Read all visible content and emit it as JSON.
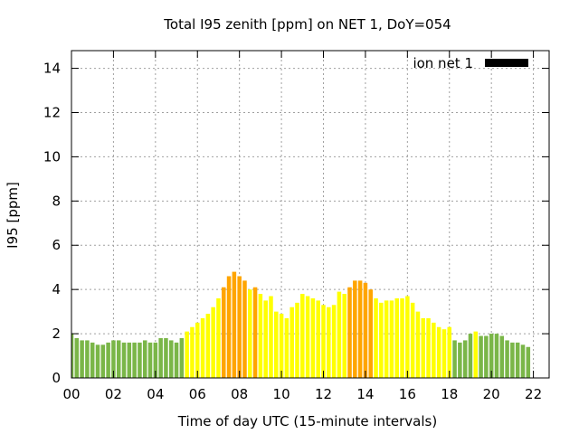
{
  "chart_data": {
    "type": "bar",
    "title": "Total I95 zenith [ppm] on NET 1, DoY=054",
    "xlabel": "Time of day UTC (15-minute intervals)",
    "ylabel": "I95 [ppm]",
    "xlim": [
      0,
      22.75
    ],
    "ylim": [
      0,
      14.8
    ],
    "x_ticks": [
      "00",
      "02",
      "04",
      "06",
      "08",
      "10",
      "12",
      "14",
      "16",
      "18",
      "20",
      "22"
    ],
    "y_ticks": [
      "0",
      "2",
      "4",
      "6",
      "8",
      "10",
      "12",
      "14"
    ],
    "grid": true,
    "legend": {
      "position": "top-right",
      "label": "ion net 1",
      "color": "#000000"
    },
    "bar_interval_hours": 0.25,
    "colors": {
      "low": "#7ab648",
      "medium": "#ffff00",
      "high": "#ffa500"
    },
    "values": [
      2.0,
      1.8,
      1.7,
      1.7,
      1.6,
      1.5,
      1.5,
      1.6,
      1.7,
      1.7,
      1.6,
      1.6,
      1.6,
      1.6,
      1.7,
      1.6,
      1.6,
      1.8,
      1.8,
      1.7,
      1.6,
      1.8,
      2.1,
      2.3,
      2.5,
      2.7,
      2.9,
      3.2,
      3.6,
      4.1,
      4.6,
      4.8,
      4.6,
      4.4,
      4.0,
      4.1,
      3.8,
      3.5,
      3.7,
      3.0,
      2.9,
      2.7,
      3.2,
      3.4,
      3.8,
      3.7,
      3.6,
      3.5,
      3.3,
      3.2,
      3.3,
      3.9,
      3.8,
      4.1,
      4.4,
      4.4,
      4.3,
      4.0,
      3.6,
      3.4,
      3.5,
      3.5,
      3.6,
      3.6,
      3.7,
      3.4,
      3.0,
      2.7,
      2.7,
      2.5,
      2.3,
      2.2,
      2.3,
      1.7,
      1.6,
      1.7,
      2.0,
      2.1,
      1.9,
      1.9,
      2.0,
      2.0,
      1.9,
      1.7,
      1.6,
      1.6,
      1.5,
      1.4
    ],
    "levels": [
      "low",
      "low",
      "low",
      "low",
      "low",
      "low",
      "low",
      "low",
      "low",
      "low",
      "low",
      "low",
      "low",
      "low",
      "low",
      "low",
      "low",
      "low",
      "low",
      "low",
      "low",
      "low",
      "medium",
      "medium",
      "medium",
      "medium",
      "medium",
      "medium",
      "medium",
      "high",
      "high",
      "high",
      "high",
      "high",
      "medium",
      "high",
      "medium",
      "medium",
      "medium",
      "medium",
      "medium",
      "medium",
      "medium",
      "medium",
      "medium",
      "medium",
      "medium",
      "medium",
      "medium",
      "medium",
      "medium",
      "medium",
      "medium",
      "high",
      "high",
      "high",
      "high",
      "high",
      "medium",
      "medium",
      "medium",
      "medium",
      "medium",
      "medium",
      "medium",
      "medium",
      "medium",
      "medium",
      "medium",
      "medium",
      "medium",
      "medium",
      "medium",
      "low",
      "low",
      "low",
      "low",
      "medium",
      "low",
      "low",
      "low",
      "low",
      "low",
      "low",
      "low",
      "low",
      "low",
      "low"
    ]
  }
}
